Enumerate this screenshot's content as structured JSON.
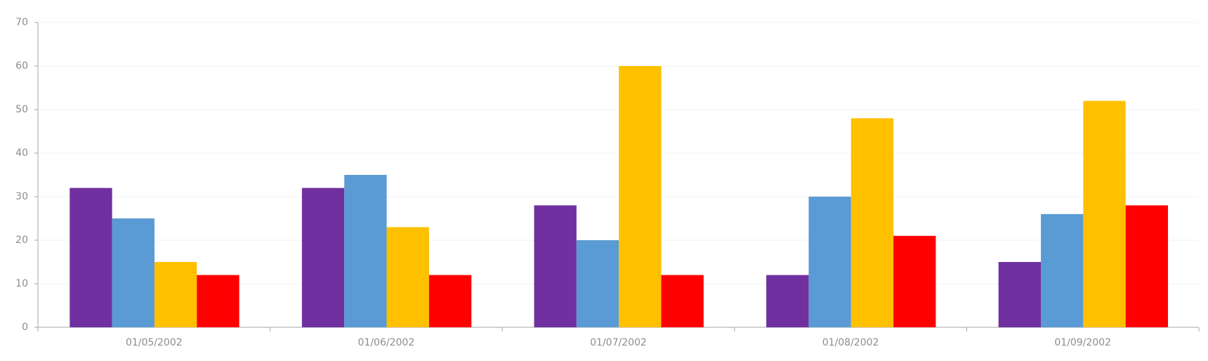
{
  "chart_data": {
    "type": "bar",
    "categories": [
      "01/05/2002",
      "01/06/2002",
      "01/07/2002",
      "01/08/2002",
      "01/09/2002"
    ],
    "series": [
      {
        "color": "#7030a0",
        "values": [
          32,
          32,
          28,
          12,
          15
        ]
      },
      {
        "color": "#5b9bd5",
        "values": [
          25,
          35,
          20,
          30,
          26
        ]
      },
      {
        "color": "#ffc000",
        "values": [
          15,
          23,
          60,
          48,
          52
        ]
      },
      {
        "color": "#ff0000",
        "values": [
          12,
          12,
          12,
          21,
          28
        ]
      }
    ],
    "ylim": [
      0,
      70
    ],
    "yticks": [
      0,
      10,
      20,
      30,
      40,
      50,
      60,
      70
    ],
    "grid": true
  }
}
